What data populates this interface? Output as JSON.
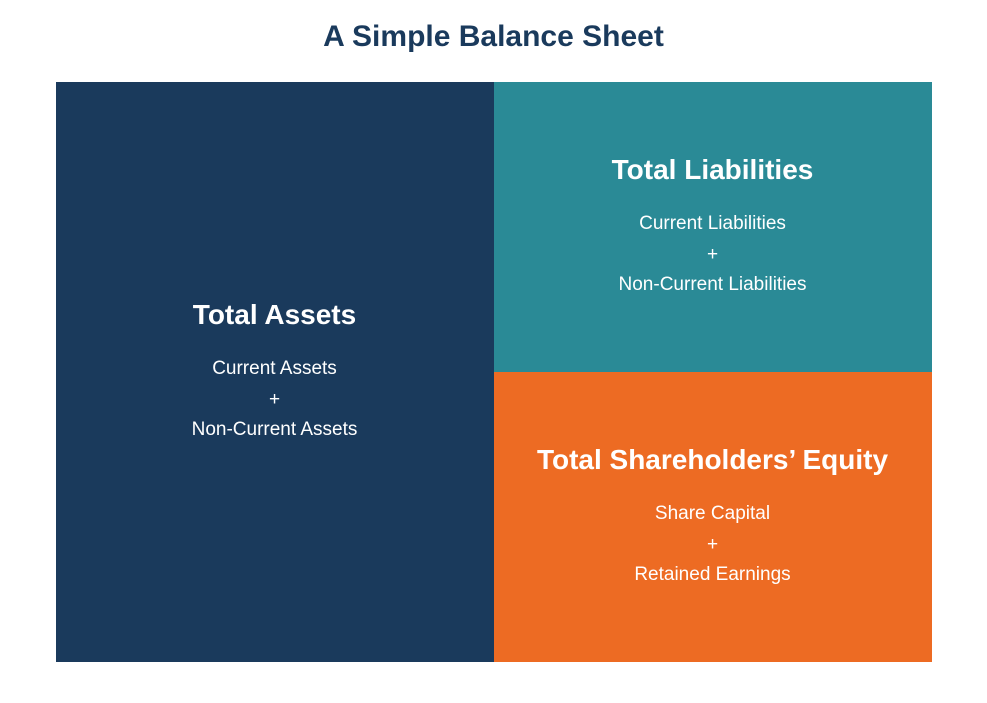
{
  "title": {
    "text": "A Simple Balance Sheet",
    "color": "#1a3a5c",
    "fontsize": 30
  },
  "layout": {
    "total_width": 876,
    "total_height": 580,
    "left_ratio": 0.5,
    "right_top_ratio": 0.5
  },
  "panels": {
    "assets": {
      "heading": "Total Assets",
      "sub_line1": "Current Assets",
      "plus": "+",
      "sub_line2": "Non-Current Assets",
      "bg_color": "#1a3a5c",
      "text_color": "#ffffff",
      "heading_fontsize": 28,
      "sub_fontsize": 19
    },
    "liabilities": {
      "heading": "Total Liabilities",
      "sub_line1": "Current Liabilities",
      "plus": "+",
      "sub_line2": "Non-Current Liabilities",
      "bg_color": "#2a8a96",
      "text_color": "#ffffff",
      "heading_fontsize": 28,
      "sub_fontsize": 19
    },
    "equity": {
      "heading": "Total Shareholders’ Equity",
      "sub_line1": "Share Capital",
      "plus": "+",
      "sub_line2": "Retained Earnings",
      "bg_color": "#ed6b23",
      "text_color": "#ffffff",
      "heading_fontsize": 28,
      "sub_fontsize": 19
    }
  }
}
